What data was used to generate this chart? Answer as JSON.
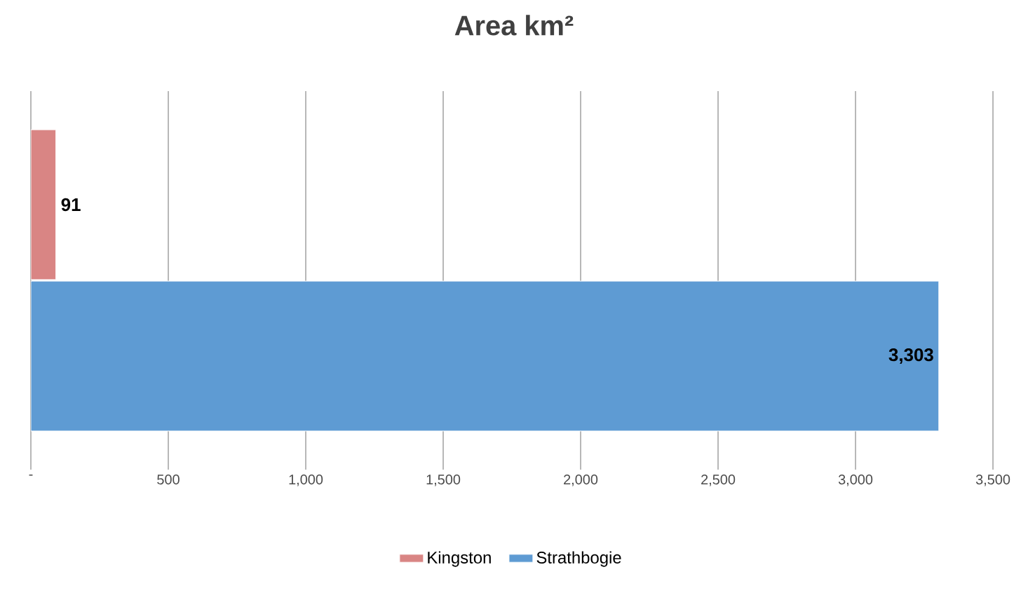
{
  "chart_data": {
    "type": "bar",
    "orientation": "horizontal",
    "title": "Area km²",
    "categories": [
      null
    ],
    "series": [
      {
        "name": "Kingston",
        "color": "#d98584",
        "values": [
          91
        ],
        "value_labels": [
          "91"
        ]
      },
      {
        "name": "Strathbogie",
        "color": "#5e9bd3",
        "values": [
          3303
        ],
        "value_labels": [
          "3,303"
        ]
      }
    ],
    "xlim": [
      0,
      3500
    ],
    "xticks": [
      {
        "value": 0,
        "label": "-"
      },
      {
        "value": 500,
        "label": "500"
      },
      {
        "value": 1000,
        "label": "1,000"
      },
      {
        "value": 1500,
        "label": "1,500"
      },
      {
        "value": 2000,
        "label": "2,000"
      },
      {
        "value": 2500,
        "label": "2,500"
      },
      {
        "value": 3000,
        "label": "3,000"
      },
      {
        "value": 3500,
        "label": "3,500"
      }
    ],
    "grid": "x",
    "legend": "bottom"
  }
}
